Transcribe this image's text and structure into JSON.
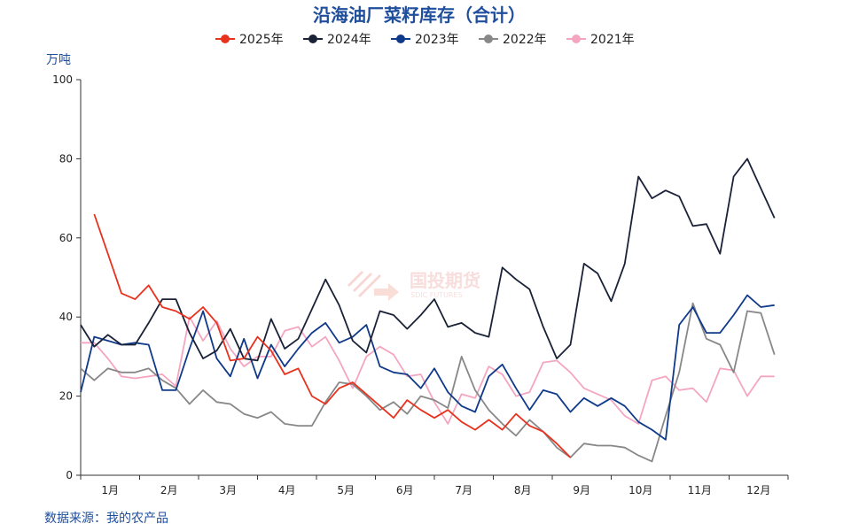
{
  "chart_data": {
    "type": "line",
    "title": "沿海油厂菜籽库存（合计）",
    "ylabel": "万吨",
    "ylim": [
      0,
      100
    ],
    "yticks": [
      0,
      20,
      40,
      60,
      80,
      100
    ],
    "x_month_labels": [
      "1月",
      "2月",
      "3月",
      "4月",
      "5月",
      "6月",
      "7月",
      "8月",
      "9月",
      "10月",
      "11月",
      "12月"
    ],
    "x_week_range": [
      1,
      53
    ],
    "legend_position": "top",
    "grid": false,
    "source": "数据来源：我的农产品",
    "watermark": {
      "cn": "国投期货",
      "en": "SDIC FUTURES"
    },
    "series": [
      {
        "name": "2025年",
        "color": "#e8321e",
        "x": [
          2,
          3,
          4,
          5,
          6,
          7,
          8,
          9,
          10,
          11,
          12,
          13,
          14,
          15,
          16,
          17,
          18,
          19,
          20,
          21,
          22,
          23,
          24,
          25,
          26,
          27,
          28,
          29,
          30,
          31,
          32,
          33,
          34,
          35,
          36,
          37,
          38
        ],
        "values": [
          66,
          56,
          46,
          44.5,
          48,
          42.5,
          41.5,
          39.5,
          42.5,
          38.5,
          29,
          29.5,
          35,
          31.5,
          25.5,
          27,
          20,
          18,
          22,
          23.5,
          20.5,
          17.5,
          14.5,
          19,
          16.5,
          14.5,
          16.5,
          13.5,
          11.5,
          14,
          11.5,
          15.5,
          12.5,
          11,
          8,
          4.5,
          null
        ]
      },
      {
        "name": "2024年",
        "color": "#1a2238",
        "x": [
          1,
          2,
          3,
          4,
          5,
          6,
          7,
          8,
          9,
          10,
          11,
          12,
          13,
          14,
          15,
          16,
          17,
          18,
          19,
          20,
          21,
          22,
          23,
          24,
          25,
          26,
          27,
          28,
          29,
          30,
          31,
          32,
          33,
          34,
          35,
          36,
          37,
          38,
          39,
          40,
          41,
          42,
          43,
          44,
          45,
          46,
          47,
          48,
          49,
          50,
          51,
          52,
          53
        ],
        "values": [
          38,
          32.5,
          35.5,
          33,
          33,
          38.5,
          44.5,
          44.5,
          36,
          29.5,
          31.5,
          37,
          29.5,
          29,
          39.5,
          32,
          34.5,
          42,
          49.5,
          43,
          34,
          31,
          41.5,
          40.5,
          37,
          40.5,
          44.5,
          37.5,
          38.5,
          36,
          35,
          52.5,
          49.5,
          47,
          37.5,
          29.5,
          33,
          53.5,
          51,
          44,
          53.5,
          75.5,
          70,
          72,
          70.5,
          63,
          63.5,
          56,
          75.5,
          80,
          72.5,
          65,
          null
        ]
      },
      {
        "name": "2023年",
        "color": "#0f3a8a",
        "x": [
          1,
          2,
          3,
          4,
          5,
          6,
          7,
          8,
          9,
          10,
          11,
          12,
          13,
          14,
          15,
          16,
          17,
          18,
          19,
          20,
          21,
          22,
          23,
          24,
          25,
          26,
          27,
          28,
          29,
          30,
          31,
          32,
          33,
          34,
          35,
          36,
          37,
          38,
          39,
          40,
          41,
          42,
          43,
          44,
          45,
          46,
          47,
          48,
          49,
          50,
          51,
          52,
          53
        ],
        "values": [
          21,
          35,
          34,
          33,
          33.5,
          33,
          21.5,
          21.5,
          32,
          41.5,
          29.5,
          25,
          34.5,
          24.5,
          33,
          27.5,
          32,
          36,
          38.5,
          33.5,
          35,
          38,
          27.5,
          26,
          25.5,
          22,
          27,
          21,
          17.5,
          16,
          25,
          28,
          22,
          16.5,
          21.5,
          20.5,
          16,
          19.5,
          17.5,
          19.5,
          17.5,
          13.5,
          11.5,
          9,
          38,
          42.5,
          36,
          36,
          40.5,
          45.5,
          42.5,
          43,
          null
        ]
      },
      {
        "name": "2022年",
        "color": "#888888",
        "x": [
          1,
          2,
          3,
          4,
          5,
          6,
          7,
          8,
          9,
          10,
          11,
          12,
          13,
          14,
          15,
          16,
          17,
          18,
          19,
          20,
          21,
          22,
          23,
          24,
          25,
          26,
          27,
          28,
          29,
          30,
          31,
          32,
          33,
          34,
          35,
          36,
          37,
          38,
          39,
          40,
          41,
          42,
          43,
          44,
          45,
          46,
          47,
          48,
          49,
          50,
          51,
          52,
          53
        ],
        "values": [
          27,
          24,
          27,
          26,
          26,
          27,
          24,
          22,
          18,
          21.5,
          18.5,
          18,
          15.5,
          14.5,
          16,
          13,
          12.5,
          12.5,
          18.5,
          23.5,
          23,
          20,
          16.5,
          18.5,
          15.5,
          20,
          19,
          17,
          30,
          21.5,
          16.5,
          13,
          10,
          14,
          11,
          7,
          4.5,
          8,
          7.5,
          7.5,
          7,
          5,
          3.5,
          15,
          26,
          43.5,
          34.5,
          33,
          26,
          41.5,
          41,
          30.5,
          null
        ]
      },
      {
        "name": "2021年",
        "color": "#f4a6c0",
        "x": [
          1,
          2,
          3,
          4,
          5,
          6,
          7,
          8,
          9,
          10,
          11,
          12,
          13,
          14,
          15,
          16,
          17,
          18,
          19,
          20,
          21,
          22,
          23,
          24,
          25,
          26,
          27,
          28,
          29,
          30,
          31,
          32,
          33,
          34,
          35,
          36,
          37,
          38,
          39,
          40,
          41,
          42,
          43,
          44,
          45,
          46,
          47,
          48,
          49,
          50,
          51,
          52,
          53
        ],
        "values": [
          33.5,
          33.5,
          29.5,
          25,
          24.5,
          25,
          25.5,
          22.5,
          40,
          34,
          39,
          32,
          27.5,
          30,
          30,
          36.5,
          37.5,
          32.5,
          35,
          29,
          22,
          30,
          32.5,
          30.5,
          25,
          25.5,
          18.5,
          13,
          20.5,
          19.5,
          27.5,
          25.5,
          20,
          21,
          28.5,
          29,
          26,
          22,
          20.5,
          19,
          15,
          13,
          24,
          25,
          21.5,
          22,
          18.5,
          27,
          26.5,
          20,
          25,
          25,
          null
        ]
      }
    ]
  }
}
